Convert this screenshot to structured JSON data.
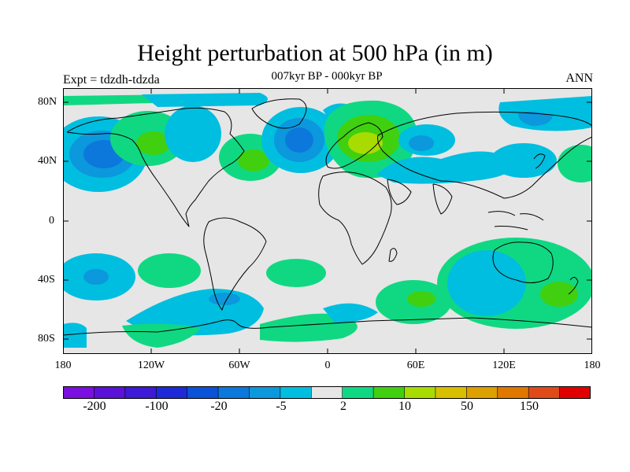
{
  "title": "Height perturbation at 500 hPa (in m)",
  "subtitle": "007kyr BP - 000kyr BP",
  "expt_label": "Expt = tdzdh-tdzda",
  "season": "ANN",
  "lat_labels": [
    "80N",
    "40N",
    "0",
    "40S",
    "80S"
  ],
  "lon_labels": [
    "180",
    "120W",
    "60W",
    "0",
    "60E",
    "120E",
    "180"
  ],
  "colorbar": {
    "colors": [
      "#7a0fe0",
      "#5a12d8",
      "#3c1ad6",
      "#1e2ad8",
      "#0a52d8",
      "#0c78dc",
      "#0c98dc",
      "#00bedf",
      "#e6e6e6",
      "#10d882",
      "#40d010",
      "#a8dc00",
      "#d8c000",
      "#dca000",
      "#e07800",
      "#e04a1a",
      "#e00000"
    ],
    "labels": [
      "-200",
      "-100",
      "-20",
      "-5",
      "2",
      "10",
      "50",
      "150"
    ]
  },
  "map_colors": {
    "background": "#e6e6e6",
    "cyan": "#00bedf",
    "mid_blue": "#0c98dc",
    "blue": "#0c78dc",
    "light_green": "#10d882",
    "green": "#40d010",
    "yellow_green": "#a8dc00"
  }
}
